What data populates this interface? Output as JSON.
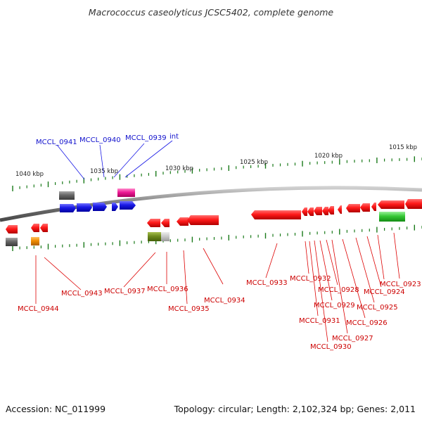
{
  "title": "Macrococcus caseolyticus JCSC5402, complete genome",
  "footer": {
    "accession": "Accession: NC_011999",
    "topology": "Topology: circular; Length: 2,102,324 bp; Genes: 2,011"
  },
  "scale_ticks": [
    "1040 kbp",
    "1035 kbp",
    "1030 kbp",
    "1025 kbp",
    "1020 kbp",
    "1015 kbp"
  ],
  "colors": {
    "forward_label": "#1010cc",
    "reverse_label": "#cc0000",
    "backbone": "#888888",
    "tick": "#1a7a1a"
  },
  "forward_genes": [
    {
      "name": "MCCL_0941",
      "color": "#1a1ae6"
    },
    {
      "name": "MCCL_0940",
      "color": "#1a1ae6"
    },
    {
      "name": "MCCL_0939",
      "color": "#1a1ae6"
    },
    {
      "name": "int",
      "color": "#1a1ae6"
    }
  ],
  "reverse_genes": [
    {
      "name": "MCCL_0944"
    },
    {
      "name": "MCCL_0943"
    },
    {
      "name": "MCCL_0937"
    },
    {
      "name": "MCCL_0936"
    },
    {
      "name": "MCCL_0935"
    },
    {
      "name": "MCCL_0934"
    },
    {
      "name": "MCCL_0933"
    },
    {
      "name": "MCCL_0932"
    },
    {
      "name": "MCCL_0931"
    },
    {
      "name": "MCCL_0930"
    },
    {
      "name": "MCCL_0929"
    },
    {
      "name": "MCCL_0928"
    },
    {
      "name": "MCCL_0927"
    },
    {
      "name": "MCCL_0926"
    },
    {
      "name": "MCCL_0925"
    },
    {
      "name": "MCCL_0924"
    },
    {
      "name": "MCCL_0923"
    }
  ]
}
